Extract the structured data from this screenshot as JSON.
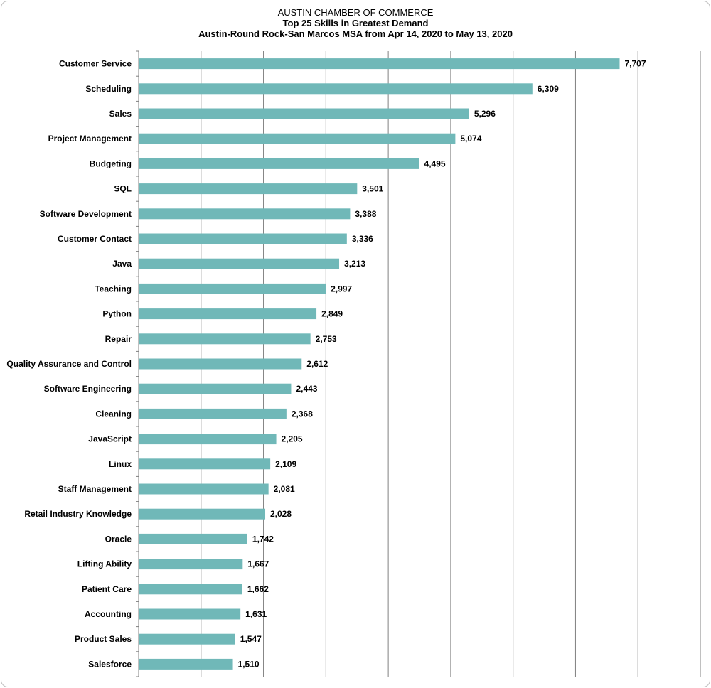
{
  "chart_data": {
    "type": "bar",
    "orientation": "horizontal",
    "title": "AUSTIN CHAMBER  OF COMMERCE",
    "subtitle": "Top 25 Skills in Greatest Demand",
    "subtitle2": "Austin-Round  Rock-San Marcos MSA from Apr 14, 2020 to May 13, 2020",
    "categories": [
      "Customer Service",
      "Scheduling",
      "Sales",
      "Project Management",
      "Budgeting",
      "SQL",
      "Software Development",
      "Customer Contact",
      "Java",
      "Teaching",
      "Python",
      "Repair",
      "Quality Assurance and Control",
      "Software Engineering",
      "Cleaning",
      "JavaScript",
      "Linux",
      "Staff Management",
      "Retail Industry Knowledge",
      "Oracle",
      "Lifting Ability",
      "Patient Care",
      "Accounting",
      "Product Sales",
      "Salesforce"
    ],
    "values": [
      7707,
      6309,
      5296,
      5074,
      4495,
      3501,
      3388,
      3336,
      3213,
      2997,
      2849,
      2753,
      2612,
      2443,
      2368,
      2205,
      2109,
      2081,
      2028,
      1742,
      1667,
      1662,
      1631,
      1547,
      1510
    ],
    "value_labels": [
      "7,707",
      "6,309",
      "5,296",
      "5,074",
      "4,495",
      "3,501",
      "3,388",
      "3,336",
      "3,213",
      "2,997",
      "2,849",
      "2,753",
      "2,612",
      "2,443",
      "2,368",
      "2,205",
      "2,109",
      "2,081",
      "2,028",
      "1,742",
      "1,667",
      "1,662",
      "1,631",
      "1,547",
      "1,510"
    ],
    "xlim": [
      0,
      9000
    ],
    "grid": true,
    "bar_color": "#70b8b8"
  }
}
